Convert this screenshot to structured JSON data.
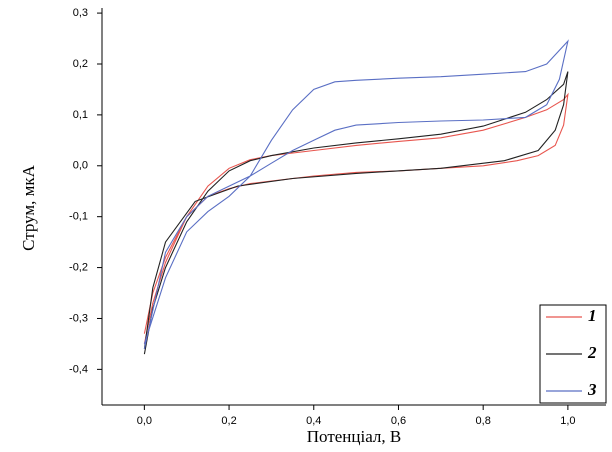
{
  "chart_data": {
    "type": "line",
    "x_label": "Потенціал, В",
    "y_label": "Струм, мкА",
    "xlim": [
      -0.1,
      1.09
    ],
    "ylim": [
      -0.47,
      0.31
    ],
    "xticks": [
      {
        "value": 0,
        "label": "0,0"
      },
      {
        "value": 0.2,
        "label": "0,2"
      },
      {
        "value": 0.4,
        "label": "0,4"
      },
      {
        "value": 0.6,
        "label": "0,6"
      },
      {
        "value": 0.8,
        "label": "0,8"
      },
      {
        "value": 1.0,
        "label": "1,0"
      }
    ],
    "yticks": [
      {
        "value": -0.4,
        "label": "-0,4"
      },
      {
        "value": -0.3,
        "label": "-0,3"
      },
      {
        "value": -0.2,
        "label": "-0,2"
      },
      {
        "value": -0.1,
        "label": "-0,1"
      },
      {
        "value": 0,
        "label": "0,0"
      },
      {
        "value": 0.1,
        "label": "0,1"
      },
      {
        "value": 0.2,
        "label": "0,2"
      },
      {
        "value": 0.3,
        "label": "0,3"
      }
    ],
    "legend": "lower right",
    "series": [
      {
        "name": "1",
        "color": "#e8564f",
        "x": [
          0,
          0.02,
          0.05,
          0.1,
          0.15,
          0.2,
          0.25,
          0.3,
          0.4,
          0.5,
          0.6,
          0.7,
          0.8,
          0.9,
          0.95,
          0.99,
          1.0,
          0.99,
          0.97,
          0.93,
          0.88,
          0.8,
          0.7,
          0.6,
          0.5,
          0.4,
          0.3,
          0.25,
          0.2,
          0.15,
          0.1,
          0.05,
          0.02,
          0
        ],
        "values": [
          -0.35,
          -0.27,
          -0.19,
          -0.1,
          -0.04,
          -0.005,
          0.012,
          0.02,
          0.03,
          0.04,
          0.048,
          0.055,
          0.07,
          0.095,
          0.11,
          0.13,
          0.14,
          0.08,
          0.04,
          0.02,
          0.01,
          0.0,
          -0.005,
          -0.01,
          -0.013,
          -0.02,
          -0.03,
          -0.035,
          -0.045,
          -0.06,
          -0.1,
          -0.18,
          -0.25,
          -0.33
        ]
      },
      {
        "name": "2",
        "color": "#222222",
        "x": [
          0,
          0.02,
          0.05,
          0.1,
          0.15,
          0.2,
          0.25,
          0.3,
          0.4,
          0.5,
          0.6,
          0.7,
          0.8,
          0.9,
          0.95,
          0.99,
          1.0,
          0.99,
          0.97,
          0.93,
          0.85,
          0.7,
          0.5,
          0.35,
          0.22,
          0.12,
          0.05,
          0.02,
          0
        ],
        "values": [
          -0.37,
          -0.28,
          -0.2,
          -0.11,
          -0.05,
          -0.01,
          0.01,
          0.02,
          0.035,
          0.045,
          0.053,
          0.062,
          0.078,
          0.105,
          0.13,
          0.16,
          0.185,
          0.12,
          0.07,
          0.03,
          0.01,
          -0.005,
          -0.015,
          -0.025,
          -0.04,
          -0.07,
          -0.15,
          -0.24,
          -0.36
        ]
      },
      {
        "name": "3",
        "color": "#5a6fc4",
        "x": [
          0,
          0.05,
          0.1,
          0.15,
          0.2,
          0.25,
          0.3,
          0.35,
          0.4,
          0.45,
          0.5,
          0.6,
          0.7,
          0.8,
          0.9,
          0.95,
          1.0,
          0.98,
          0.95,
          0.9,
          0.8,
          0.7,
          0.6,
          0.5,
          0.45,
          0.4,
          0.35,
          0.3,
          0.25,
          0.2,
          0.15,
          0.1,
          0.05,
          0
        ],
        "values": [
          -0.35,
          -0.22,
          -0.13,
          -0.09,
          -0.06,
          -0.02,
          0.05,
          0.11,
          0.15,
          0.165,
          0.168,
          0.172,
          0.175,
          0.18,
          0.185,
          0.2,
          0.245,
          0.17,
          0.12,
          0.095,
          0.09,
          0.088,
          0.085,
          0.08,
          0.07,
          0.05,
          0.03,
          0.005,
          -0.02,
          -0.04,
          -0.06,
          -0.1,
          -0.17,
          -0.36
        ]
      }
    ]
  }
}
